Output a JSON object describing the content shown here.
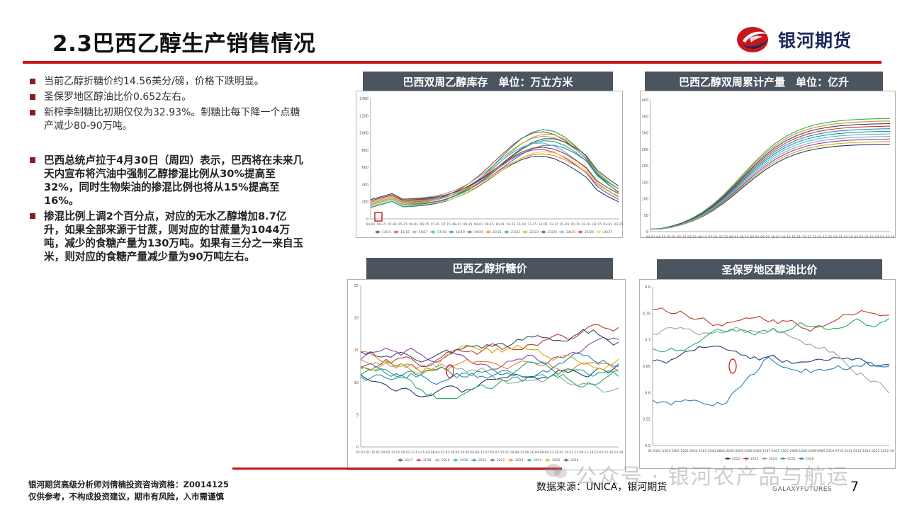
{
  "header": {
    "title": "2.3巴西乙醇生产销售情况",
    "logo_text": "银河期货"
  },
  "bullets": {
    "b1": "当前乙醇折糖价约14.56美分/磅，价格下跌明显。",
    "b2": "圣保罗地区醇油比价0.652左右。",
    "b3": "新榨季制糖比初期仅仅为32.93%。制糖比每下降一个点糖产减少80-90万吨。",
    "b4": "巴西总统卢拉于4月30日（周四）表示，巴西将在未来几天内宣布将汽油中强制乙醇掺混比例从30%提高至32%，同时生物柴油的掺混比例也将从15%提高至16%。",
    "b5": "掺混比例上调2个百分点，对应的无水乙醇增加8.7亿升，如果全部来源于甘蔗，则对应的甘蔗量为1044万吨，减少的食糖产量为130万吨。如果有三分之一来自玉米，则对应的食糖产量减少量为90万吨左右。"
  },
  "panels": {
    "p1_title": "巴西双周乙醇库存　单位：万立方米",
    "p2_title": "巴西乙醇双周累计产量　单位：亿升",
    "p3_title": "巴西乙醇折糖价",
    "p4_title": "圣保罗地区醇油比价"
  },
  "chart_data": [
    {
      "type": "line",
      "y_ticks": [
        "1400",
        "1200",
        "1000",
        "800",
        "600",
        "400",
        "200",
        "0"
      ],
      "x_ticks": [
        "04-01",
        "04-15",
        "05-01",
        "05-15",
        "06-01",
        "06-15",
        "07-01",
        "07-15",
        "08-01",
        "08-15",
        "09-01",
        "09-15",
        "10-01",
        "10-15",
        "11-01",
        "11-15",
        "12-01",
        "12-15",
        "01-01",
        "01-15",
        "02-01",
        "02-15",
        "03-01",
        "03-15"
      ],
      "legend": [
        "14/15",
        "15/16",
        "16/17",
        "17/18",
        "18/19",
        "19/20",
        "20/21",
        "21/22",
        "22/23",
        "23/24",
        "24/25",
        "25/26",
        "26/27"
      ],
      "ylim": [
        0,
        1400
      ],
      "series_colors": [
        "#1f3b73",
        "#c0392b",
        "#7f8c8d",
        "#27ae60",
        "#2980b9",
        "#8e44ad",
        "#e67e22",
        "#16a085",
        "#d4ac0d",
        "#2c3e50",
        "#5dade2",
        "#a93226",
        "#f1c40f"
      ]
    },
    {
      "type": "line",
      "y_ticks": [
        "400",
        "350",
        "300",
        "250",
        "200",
        "150",
        "100",
        "50",
        "0"
      ],
      "x_ticks": [
        "04-01",
        "04-15",
        "05-01",
        "05-15",
        "06-01",
        "06-15",
        "07-01",
        "07-15",
        "08-01",
        "08-15",
        "09-01",
        "09-15",
        "10-01",
        "10-15",
        "11-01",
        "11-15",
        "12-01",
        "12-15",
        "01-01",
        "01-15",
        "02-01",
        "02-15",
        "03-01",
        "03-15"
      ],
      "legend": [
        "15/16",
        "16/17",
        "17/18",
        "18/19",
        "19/20",
        "20/21",
        "21/22",
        "22/23",
        "23/24",
        "24/25",
        "25/26"
      ],
      "ylim": [
        0,
        400
      ]
    },
    {
      "type": "line",
      "y_ticks": [
        "25",
        "20",
        "15",
        "10",
        "5",
        "0"
      ],
      "x_ticks": [
        "01-01",
        "01-15",
        "01-29",
        "02-12",
        "02-26",
        "03-11",
        "03-25",
        "04-08",
        "04-22",
        "05-06",
        "05-20",
        "06-03",
        "06-17",
        "07-01",
        "07-15",
        "07-29",
        "08-12",
        "08-26",
        "09-09",
        "09-23",
        "10-07",
        "10-21",
        "11-04",
        "11-18",
        "12-02",
        "12-16",
        "12-30"
      ],
      "legend": [
        "2017",
        "2018",
        "2019",
        "2020",
        "2021",
        "2022",
        "2023",
        "2024",
        "2025",
        "2026"
      ],
      "ylim": [
        0,
        25
      ]
    },
    {
      "type": "line",
      "y_ticks": [
        "0.8",
        "0.75",
        "0.7",
        "0.65",
        "0.6",
        "0.55",
        "0.5"
      ],
      "x_ticks": [
        "01-01",
        "01-15",
        "01-29",
        "02-12",
        "02-26",
        "03-11",
        "03-25",
        "04-08",
        "04-22",
        "05-06",
        "05-20",
        "06-03",
        "06-17",
        "07-01",
        "07-15",
        "07-29",
        "08-12",
        "08-26",
        "09-09",
        "09-23",
        "10-07",
        "10-21",
        "11-04",
        "11-18",
        "12-02",
        "12-16",
        "12-30"
      ],
      "legend": [
        "2022",
        "2023",
        "2024",
        "2025",
        "2026"
      ],
      "ylim": [
        0.5,
        0.8
      ]
    }
  ],
  "footer": {
    "disclaimer_1": "银河期货高级分析师刘倩楠投资咨询资格：Z0014125",
    "disclaimer_2": "仅供参考，不构成投资建议，期市有风险，入市需谨慎",
    "source": "数据来源：UNICA，银河期货",
    "page_number": "7",
    "watermark": "公众号 · 银河农产品与航运",
    "watermark_logo": "GALAXYFUTURES"
  }
}
